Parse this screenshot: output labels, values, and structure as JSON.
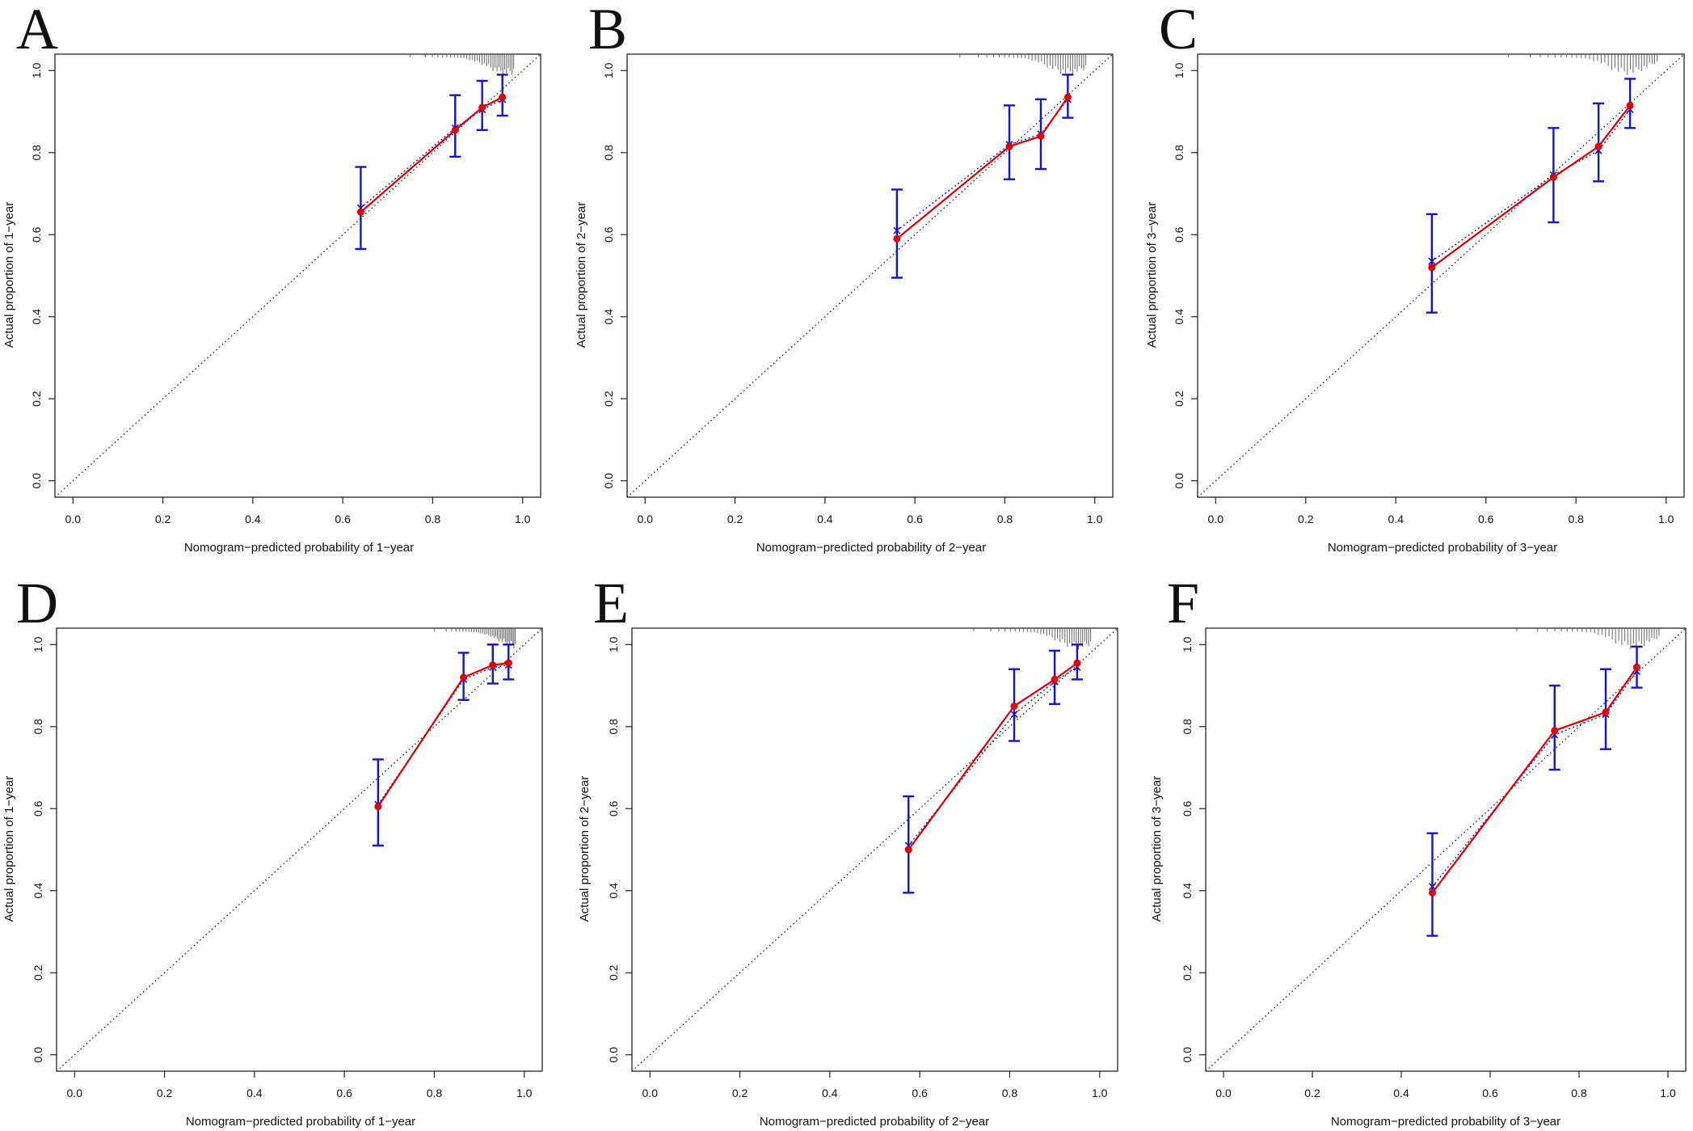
{
  "figure": {
    "description_free": true,
    "colors": {
      "observed_line": "#e00000",
      "observed_point": "#e00000",
      "error_bar": "#1414c8",
      "bias_corrected": "#1414c8",
      "reference_line": "#222222",
      "axis": "#222222",
      "rug": "#666666"
    }
  },
  "chart_data": [
    {
      "panel": "A",
      "type": "line",
      "xlabel": "Nomogram−predicted probability of 1−year",
      "ylabel": "Actual proportion of 1−year",
      "xlim": [
        0.0,
        1.0
      ],
      "ylim": [
        0.0,
        1.0
      ],
      "xticks": [
        "0.0",
        "0.2",
        "0.4",
        "0.6",
        "0.8",
        "1.0"
      ],
      "yticks": [
        "0.0",
        "0.2",
        "0.4",
        "0.6",
        "0.8",
        "1.0"
      ],
      "reference": "ideal diagonal",
      "points": [
        {
          "x": 0.64,
          "y": 0.655,
          "lo": 0.565,
          "hi": 0.765,
          "xmark": 0.665
        },
        {
          "x": 0.85,
          "y": 0.855,
          "lo": 0.79,
          "hi": 0.94,
          "xmark": 0.86
        },
        {
          "x": 0.91,
          "y": 0.91,
          "lo": 0.855,
          "hi": 0.975,
          "xmark": 0.905
        },
        {
          "x": 0.955,
          "y": 0.935,
          "lo": 0.89,
          "hi": 0.99,
          "xmark": 0.93
        }
      ],
      "rug_start": 0.75
    },
    {
      "panel": "B",
      "type": "line",
      "xlabel": "Nomogram−predicted probability of 2−year",
      "ylabel": "Actual proportion of 2−year",
      "xlim": [
        0.0,
        1.0
      ],
      "ylim": [
        0.0,
        1.0
      ],
      "xticks": [
        "0.0",
        "0.2",
        "0.4",
        "0.6",
        "0.8",
        "1.0"
      ],
      "yticks": [
        "0.0",
        "0.2",
        "0.4",
        "0.6",
        "0.8",
        "1.0"
      ],
      "reference": "ideal diagonal",
      "points": [
        {
          "x": 0.56,
          "y": 0.59,
          "lo": 0.495,
          "hi": 0.71,
          "xmark": 0.61
        },
        {
          "x": 0.81,
          "y": 0.815,
          "lo": 0.735,
          "hi": 0.915,
          "xmark": 0.82
        },
        {
          "x": 0.88,
          "y": 0.84,
          "lo": 0.76,
          "hi": 0.93,
          "xmark": 0.845
        },
        {
          "x": 0.94,
          "y": 0.935,
          "lo": 0.885,
          "hi": 0.99,
          "xmark": 0.93
        }
      ],
      "rug_start": 0.7
    },
    {
      "panel": "C",
      "type": "line",
      "xlabel": "Nomogram−predicted probability of 3−year",
      "ylabel": "Actual proportion of 3−year",
      "xlim": [
        0.0,
        1.0
      ],
      "ylim": [
        0.0,
        1.0
      ],
      "xticks": [
        "0.0",
        "0.2",
        "0.4",
        "0.6",
        "0.8",
        "1.0"
      ],
      "yticks": [
        "0.0",
        "0.2",
        "0.4",
        "0.6",
        "0.8",
        "1.0"
      ],
      "reference": "ideal diagonal",
      "points": [
        {
          "x": 0.48,
          "y": 0.52,
          "lo": 0.41,
          "hi": 0.65,
          "xmark": 0.535
        },
        {
          "x": 0.75,
          "y": 0.74,
          "lo": 0.63,
          "hi": 0.86,
          "xmark": 0.745
        },
        {
          "x": 0.85,
          "y": 0.815,
          "lo": 0.73,
          "hi": 0.92,
          "xmark": 0.805
        },
        {
          "x": 0.92,
          "y": 0.915,
          "lo": 0.86,
          "hi": 0.98,
          "xmark": 0.905
        }
      ],
      "rug_start": 0.65
    },
    {
      "panel": "D",
      "type": "line",
      "xlabel": "Nomogram−predicted probability of 1−year",
      "ylabel": "Actual proportion of 1−year",
      "xlim": [
        0.0,
        1.0
      ],
      "ylim": [
        0.0,
        1.0
      ],
      "xticks": [
        "0.0",
        "0.2",
        "0.4",
        "0.6",
        "0.8",
        "1.0"
      ],
      "yticks": [
        "0.0",
        "0.2",
        "0.4",
        "0.6",
        "0.8",
        "1.0"
      ],
      "reference": "ideal diagonal",
      "points": [
        {
          "x": 0.675,
          "y": 0.605,
          "lo": 0.51,
          "hi": 0.72,
          "xmark": 0.61
        },
        {
          "x": 0.865,
          "y": 0.92,
          "lo": 0.865,
          "hi": 0.98,
          "xmark": 0.915
        },
        {
          "x": 0.93,
          "y": 0.95,
          "lo": 0.905,
          "hi": 1.0,
          "xmark": 0.945
        },
        {
          "x": 0.965,
          "y": 0.955,
          "lo": 0.915,
          "hi": 1.0,
          "xmark": 0.95
        }
      ],
      "rug_start": 0.8
    },
    {
      "panel": "E",
      "type": "line",
      "xlabel": "Nomogram−predicted probability of 2−year",
      "ylabel": "Actual proportion of 2−year",
      "xlim": [
        0.0,
        1.0
      ],
      "ylim": [
        0.0,
        1.0
      ],
      "xticks": [
        "0.0",
        "0.2",
        "0.4",
        "0.6",
        "0.8",
        "1.0"
      ],
      "yticks": [
        "0.0",
        "0.2",
        "0.4",
        "0.6",
        "0.8",
        "1.0"
      ],
      "reference": "ideal diagonal",
      "points": [
        {
          "x": 0.575,
          "y": 0.5,
          "lo": 0.395,
          "hi": 0.63,
          "xmark": 0.51
        },
        {
          "x": 0.81,
          "y": 0.85,
          "lo": 0.765,
          "hi": 0.94,
          "xmark": 0.83
        },
        {
          "x": 0.9,
          "y": 0.915,
          "lo": 0.855,
          "hi": 0.985,
          "xmark": 0.91
        },
        {
          "x": 0.95,
          "y": 0.955,
          "lo": 0.915,
          "hi": 1.0,
          "xmark": 0.945
        }
      ],
      "rug_start": 0.72
    },
    {
      "panel": "F",
      "type": "line",
      "xlabel": "Nomogram−predicted probability of 3−year",
      "ylabel": "Actual proportion of 3−year",
      "xlim": [
        0.0,
        1.0
      ],
      "ylim": [
        0.0,
        1.0
      ],
      "xticks": [
        "0.0",
        "0.2",
        "0.4",
        "0.6",
        "0.8",
        "1.0"
      ],
      "yticks": [
        "0.0",
        "0.2",
        "0.4",
        "0.6",
        "0.8",
        "1.0"
      ],
      "reference": "ideal diagonal",
      "points": [
        {
          "x": 0.47,
          "y": 0.395,
          "lo": 0.29,
          "hi": 0.54,
          "xmark": 0.41
        },
        {
          "x": 0.745,
          "y": 0.79,
          "lo": 0.695,
          "hi": 0.9,
          "xmark": 0.78
        },
        {
          "x": 0.86,
          "y": 0.835,
          "lo": 0.745,
          "hi": 0.94,
          "xmark": 0.83
        },
        {
          "x": 0.93,
          "y": 0.945,
          "lo": 0.895,
          "hi": 0.995,
          "xmark": 0.935
        }
      ],
      "rug_start": 0.66
    }
  ]
}
